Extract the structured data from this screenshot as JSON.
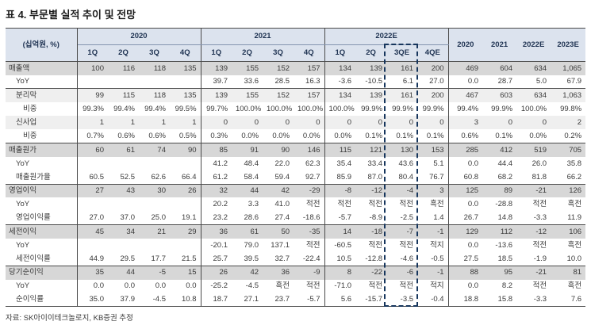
{
  "title": "표 4. 부문별 실적 추이 및 전망",
  "source_note": "자료: SK아이이테크놀로지, KB증권 추정",
  "colors": {
    "header_bg": "#dce3ee",
    "header_text": "#1f3352",
    "body_text": "#3a3a3a",
    "rule": "#4a4a4a",
    "section_row_bg": "#d7d7d7",
    "subsection_row_bg": "#efefef",
    "highlight_border": "#17365d"
  },
  "table": {
    "unit_label": "(십억원, %)",
    "groups": [
      {
        "label": "2020",
        "cols": [
          "1Q",
          "2Q",
          "3Q",
          "4Q"
        ]
      },
      {
        "label": "2021",
        "cols": [
          "1Q",
          "2Q",
          "3Q",
          "4Q"
        ]
      },
      {
        "label": "2022E",
        "cols": [
          "1Q",
          "2Q",
          "3QE",
          "4QE"
        ]
      }
    ],
    "annual_cols": [
      "2020",
      "2021",
      "2022E",
      "2023E"
    ],
    "highlighted_column": "2022E 3QE",
    "rows": [
      {
        "label": "매출액",
        "indent": 0,
        "style": "total",
        "rule_above": true,
        "values": [
          "100",
          "116",
          "118",
          "135",
          "139",
          "155",
          "152",
          "157",
          "134",
          "139",
          "161",
          "200",
          "469",
          "604",
          "634",
          "1,065"
        ]
      },
      {
        "label": "YoY",
        "indent": 1,
        "style": "plain",
        "rule_above": false,
        "values": [
          "",
          "",
          "",
          "",
          "39.7",
          "33.6",
          "28.5",
          "16.3",
          "-3.6",
          "-10.5",
          "6.1",
          "27.0",
          "0.0",
          "28.7",
          "5.0",
          "67.9"
        ]
      },
      {
        "label": "분리막",
        "indent": 1,
        "style": "sub",
        "rule_above": true,
        "values": [
          "99",
          "115",
          "118",
          "135",
          "139",
          "155",
          "152",
          "157",
          "134",
          "139",
          "161",
          "200",
          "467",
          "603",
          "634",
          "1,063"
        ]
      },
      {
        "label": "비중",
        "indent": 2,
        "style": "plain",
        "rule_above": false,
        "values": [
          "99.3%",
          "99.4%",
          "99.4%",
          "99.5%",
          "99.7%",
          "100.0%",
          "100.0%",
          "100.0%",
          "100.0%",
          "99.9%",
          "99.9%",
          "99.9%",
          "99.4%",
          "99.9%",
          "100.0%",
          "99.8%"
        ]
      },
      {
        "label": "신사업",
        "indent": 1,
        "style": "sub",
        "rule_above": false,
        "values": [
          "1",
          "1",
          "1",
          "1",
          "0",
          "0",
          "0",
          "0",
          "0",
          "0",
          "0",
          "0",
          "3",
          "0",
          "0",
          "2"
        ]
      },
      {
        "label": "비중",
        "indent": 2,
        "style": "plain",
        "rule_above": false,
        "values": [
          "0.7%",
          "0.6%",
          "0.6%",
          "0.5%",
          "0.3%",
          "0.0%",
          "0.0%",
          "0.0%",
          "0.0%",
          "0.1%",
          "0.1%",
          "0.1%",
          "0.6%",
          "0.1%",
          "0.0%",
          "0.2%"
        ]
      },
      {
        "label": "매출원가",
        "indent": 0,
        "style": "total",
        "rule_above": true,
        "values": [
          "60",
          "61",
          "74",
          "90",
          "85",
          "91",
          "90",
          "146",
          "115",
          "121",
          "130",
          "153",
          "285",
          "412",
          "519",
          "705"
        ]
      },
      {
        "label": "YoY",
        "indent": 1,
        "style": "plain",
        "rule_above": false,
        "values": [
          "",
          "",
          "",
          "",
          "41.2",
          "48.4",
          "22.0",
          "62.3",
          "35.4",
          "33.4",
          "43.6",
          "5.1",
          "0.0",
          "44.4",
          "26.0",
          "35.8"
        ]
      },
      {
        "label": "매출원가율",
        "indent": 1,
        "style": "plain",
        "rule_above": false,
        "values": [
          "60.5",
          "52.5",
          "62.6",
          "66.4",
          "61.2",
          "58.4",
          "59.4",
          "92.7",
          "85.9",
          "87.0",
          "80.4",
          "76.7",
          "60.8",
          "68.2",
          "81.8",
          "66.2"
        ]
      },
      {
        "label": "영업이익",
        "indent": 0,
        "style": "total",
        "rule_above": true,
        "values": [
          "27",
          "43",
          "30",
          "26",
          "32",
          "44",
          "42",
          "-29",
          "-8",
          "-12",
          "-4",
          "3",
          "125",
          "89",
          "-21",
          "126"
        ]
      },
      {
        "label": "YoY",
        "indent": 1,
        "style": "plain",
        "rule_above": false,
        "values": [
          "",
          "",
          "",
          "",
          "20.2",
          "3.3",
          "41.0",
          "적전",
          "적전",
          "적전",
          "적전",
          "흑전",
          "0.0",
          "-28.8",
          "적전",
          "흑전"
        ]
      },
      {
        "label": "영업이익률",
        "indent": 1,
        "style": "plain",
        "rule_above": false,
        "values": [
          "27.0",
          "37.0",
          "25.0",
          "19.1",
          "23.2",
          "28.6",
          "27.4",
          "-18.6",
          "-5.7",
          "-8.9",
          "-2.5",
          "1.4",
          "26.7",
          "14.8",
          "-3.3",
          "11.9"
        ]
      },
      {
        "label": "세전이익",
        "indent": 0,
        "style": "total",
        "rule_above": true,
        "values": [
          "45",
          "34",
          "21",
          "29",
          "36",
          "61",
          "50",
          "-35",
          "14",
          "-18",
          "-7",
          "-1",
          "129",
          "112",
          "-12",
          "106"
        ]
      },
      {
        "label": "YoY",
        "indent": 1,
        "style": "plain",
        "rule_above": false,
        "values": [
          "",
          "",
          "",
          "",
          "-20.1",
          "79.0",
          "137.1",
          "적전",
          "-60.5",
          "적전",
          "적전",
          "적지",
          "0.0",
          "-13.6",
          "적전",
          "흑전"
        ]
      },
      {
        "label": "세전이익률",
        "indent": 1,
        "style": "plain",
        "rule_above": false,
        "values": [
          "44.9",
          "29.5",
          "17.7",
          "21.5",
          "25.7",
          "39.5",
          "32.7",
          "-22.4",
          "10.5",
          "-12.8",
          "-4.6",
          "-0.5",
          "27.5",
          "18.5",
          "-1.9",
          "10.0"
        ]
      },
      {
        "label": "당기순이익",
        "indent": 0,
        "style": "total",
        "rule_above": true,
        "values": [
          "35",
          "44",
          "-5",
          "15",
          "26",
          "42",
          "36",
          "-9",
          "8",
          "-22",
          "-6",
          "-1",
          "88",
          "95",
          "-21",
          "81"
        ]
      },
      {
        "label": "YoY",
        "indent": 1,
        "style": "plain",
        "rule_above": false,
        "values": [
          "0.0",
          "0.0",
          "0.0",
          "0.0",
          "-25.2",
          "-4.5",
          "흑전",
          "적전",
          "-71.0",
          "적전",
          "적전",
          "적지",
          "0.0",
          "8.2",
          "적전",
          "흑전"
        ]
      },
      {
        "label": "순이익률",
        "indent": 1,
        "style": "plain",
        "rule_above": false,
        "values": [
          "35.0",
          "37.9",
          "-4.5",
          "10.8",
          "18.7",
          "27.1",
          "23.7",
          "-5.7",
          "5.6",
          "-15.7",
          "-3.5",
          "-0.4",
          "18.8",
          "15.8",
          "-3.3",
          "7.6"
        ]
      }
    ]
  }
}
